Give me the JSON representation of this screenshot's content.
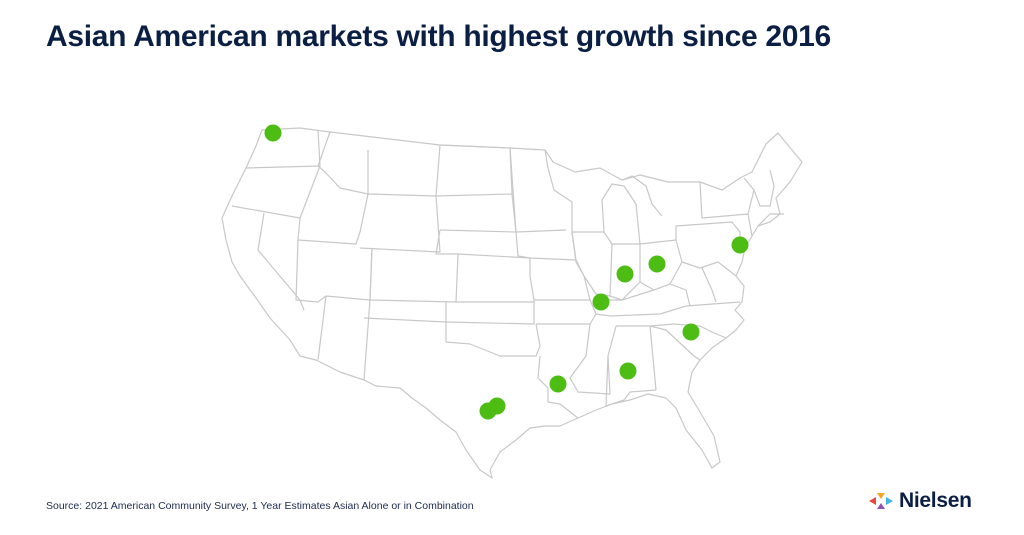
{
  "header": {
    "title": "Asian American markets with highest growth since 2016"
  },
  "map": {
    "region": "United States",
    "marker_color": "#4dbd14",
    "markers": [
      {
        "name": "seattle-marker"
      },
      {
        "name": "new-york-marker"
      },
      {
        "name": "columbus-marker"
      },
      {
        "name": "indianapolis-marker"
      },
      {
        "name": "st-louis-marker"
      },
      {
        "name": "charlotte-marker"
      },
      {
        "name": "birmingham-marker"
      },
      {
        "name": "baton-rouge-marker"
      },
      {
        "name": "austin-marker"
      },
      {
        "name": "san-antonio-marker"
      }
    ]
  },
  "footer": {
    "source": "Source: 2021 American Community Survey, 1 Year Estimates Asian Alone or in Combination"
  },
  "brand": {
    "name": "Nielsen",
    "colors": [
      "#e8483f",
      "#f5a623",
      "#3fb6e8",
      "#8e4fbf"
    ]
  }
}
